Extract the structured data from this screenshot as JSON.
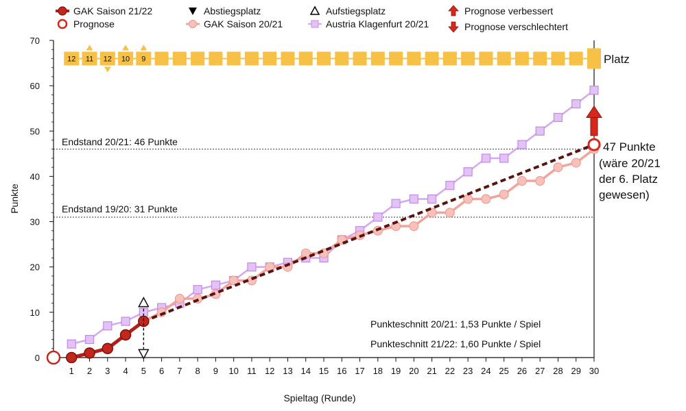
{
  "chart_data": {
    "type": "line",
    "xlabel": "Spieltag (Runde)",
    "ylabel": "Punkte",
    "xlim": [
      0,
      30
    ],
    "ylim": [
      0,
      70
    ],
    "x_ticks": [
      1,
      2,
      3,
      4,
      5,
      6,
      7,
      8,
      9,
      10,
      11,
      12,
      13,
      14,
      15,
      16,
      17,
      18,
      19,
      20,
      21,
      22,
      23,
      24,
      25,
      26,
      27,
      28,
      29,
      30
    ],
    "y_ticks": [
      0,
      10,
      20,
      30,
      40,
      50,
      60,
      70
    ],
    "legend": [
      {
        "label": "GAK Saison 21/22",
        "marker": "filled-circle",
        "color": "#b21f17"
      },
      {
        "label": "Prognose",
        "marker": "open-circle",
        "color": "#d5281b"
      },
      {
        "label": "Abstiegsplatz",
        "marker": "down-triangle",
        "color": "#000000"
      },
      {
        "label": "GAK Saison 20/21",
        "marker": "circle",
        "color": "#f2a39b"
      },
      {
        "label": "Aufstiegsplatz",
        "marker": "up-triangle",
        "color": "#000000"
      },
      {
        "label": "Austria Klagenfurt 20/21",
        "marker": "square",
        "color": "#d5a6f2"
      },
      {
        "label": "Prognose verbessert",
        "marker": "up-arrow",
        "color": "#d5281b"
      },
      {
        "label": "Prognose verschlechtert",
        "marker": "down-arrow",
        "color": "#d5281b"
      }
    ],
    "series": [
      {
        "name": "GAK Saison 21/22",
        "color": "#b21f17",
        "x": [
          0,
          1,
          2,
          3,
          4,
          5
        ],
        "y": [
          0,
          0,
          1,
          2,
          5,
          8
        ]
      },
      {
        "name": "GAK Saison 20/21",
        "color": "#f2a39b",
        "x": [
          1,
          2,
          3,
          4,
          5,
          6,
          7,
          8,
          9,
          10,
          11,
          12,
          13,
          14,
          15,
          16,
          17,
          18,
          19,
          20,
          21,
          22,
          23,
          24,
          25,
          26,
          27,
          28,
          29,
          30
        ],
        "y": [
          0,
          1,
          2,
          5,
          8,
          10,
          13,
          13,
          14,
          17,
          17,
          20,
          20,
          23,
          23,
          26,
          27,
          28,
          29,
          29,
          32,
          32,
          35,
          35,
          36,
          39,
          39,
          42,
          43,
          46
        ]
      },
      {
        "name": "Austria Klagenfurt 20/21",
        "color": "#d5a6f2",
        "x": [
          1,
          2,
          3,
          4,
          5,
          6,
          7,
          8,
          9,
          10,
          11,
          12,
          13,
          14,
          15,
          16,
          17,
          18,
          19,
          20,
          21,
          22,
          23,
          24,
          25,
          26,
          27,
          28,
          29,
          30
        ],
        "y": [
          3,
          4,
          7,
          8,
          10,
          11,
          12,
          15,
          16,
          17,
          20,
          20,
          21,
          22,
          22,
          26,
          28,
          31,
          34,
          35,
          35,
          38,
          41,
          44,
          44,
          47,
          50,
          53,
          56,
          59
        ]
      }
    ],
    "prognose": {
      "x": [
        5,
        30
      ],
      "y": [
        8,
        47
      ],
      "start_point": [
        0,
        0
      ],
      "end_point": [
        30,
        47
      ],
      "color": "#5a1410"
    },
    "reference_lines": [
      {
        "y": 46,
        "label": "Endstand 20/21: 46 Punkte"
      },
      {
        "y": 31,
        "label": "Endstand 19/20: 31 Punkte"
      }
    ],
    "platz": {
      "label": "Platz",
      "y": 66,
      "ranks": [
        {
          "x": 1,
          "rank": "12",
          "change": "none"
        },
        {
          "x": 2,
          "rank": "11",
          "change": "up"
        },
        {
          "x": 3,
          "rank": "12",
          "change": "down"
        },
        {
          "x": 4,
          "rank": "10",
          "change": "up"
        },
        {
          "x": 5,
          "rank": "9",
          "change": "up"
        }
      ],
      "empty_from": 6,
      "empty_to": 29,
      "final_x": 30,
      "color": "#f7c046"
    },
    "place_markers": [
      {
        "x": 5,
        "y": 12,
        "type": "Aufstiegsplatz"
      },
      {
        "x": 5,
        "y": 1,
        "type": "Abstiegsplatz"
      }
    ],
    "improve_arrow": {
      "x": 30,
      "y_from": 49,
      "y_to": 54
    },
    "annotations": {
      "prognose_lines": [
        "47 Punkte",
        "(wäre 20/21",
        "der 6. Platz",
        "gewesen)"
      ],
      "avg_2021": "Punkteschnitt 20/21: 1,53 Punkte / Spiel",
      "avg_2122": "Punkteschnitt 21/22: 1,60 Punkte / Spiel"
    }
  }
}
